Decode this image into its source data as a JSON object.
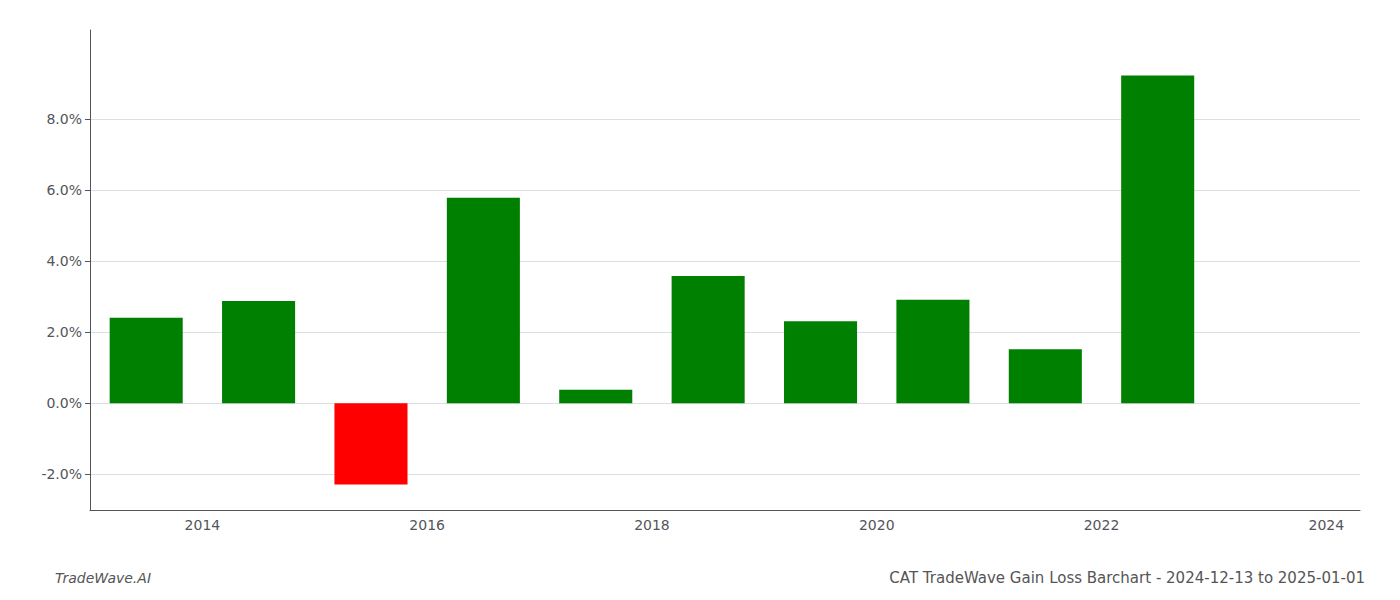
{
  "chart_data": {
    "type": "bar",
    "title": "CAT TradeWave Gain Loss Barchart - 2024-12-13 to 2025-01-01",
    "annotations": [
      "TradeWave.AI"
    ],
    "x": [
      2013,
      2014,
      2015,
      2016,
      2017,
      2018,
      2019,
      2020,
      2021,
      2022
    ],
    "values": [
      0.0241,
      0.0288,
      -0.0228,
      0.0578,
      0.0038,
      0.0358,
      0.0231,
      0.0291,
      0.0152,
      0.0922
    ],
    "colors": [
      "#008000",
      "#008000",
      "#ff0000",
      "#008000",
      "#008000",
      "#008000",
      "#008000",
      "#008000",
      "#008000",
      "#008000"
    ],
    "xlim": [
      2012.5,
      2023.8
    ],
    "xticks": [
      {
        "value": 2013.5,
        "label": "2014"
      },
      {
        "value": 2015.5,
        "label": "2016"
      },
      {
        "value": 2017.5,
        "label": "2018"
      },
      {
        "value": 2019.5,
        "label": "2020"
      },
      {
        "value": 2021.5,
        "label": "2022"
      },
      {
        "value": 2023.5,
        "label": "2024"
      }
    ],
    "ylim": [
      -0.03,
      0.105
    ],
    "yticks": [
      {
        "value": -0.02,
        "label": "-2.0%"
      },
      {
        "value": 0.0,
        "label": "0.0%"
      },
      {
        "value": 0.02,
        "label": "2.0%"
      },
      {
        "value": 0.04,
        "label": "4.0%"
      },
      {
        "value": 0.06,
        "label": "6.0%"
      },
      {
        "value": 0.08,
        "label": "8.0%"
      }
    ],
    "grid": true
  }
}
